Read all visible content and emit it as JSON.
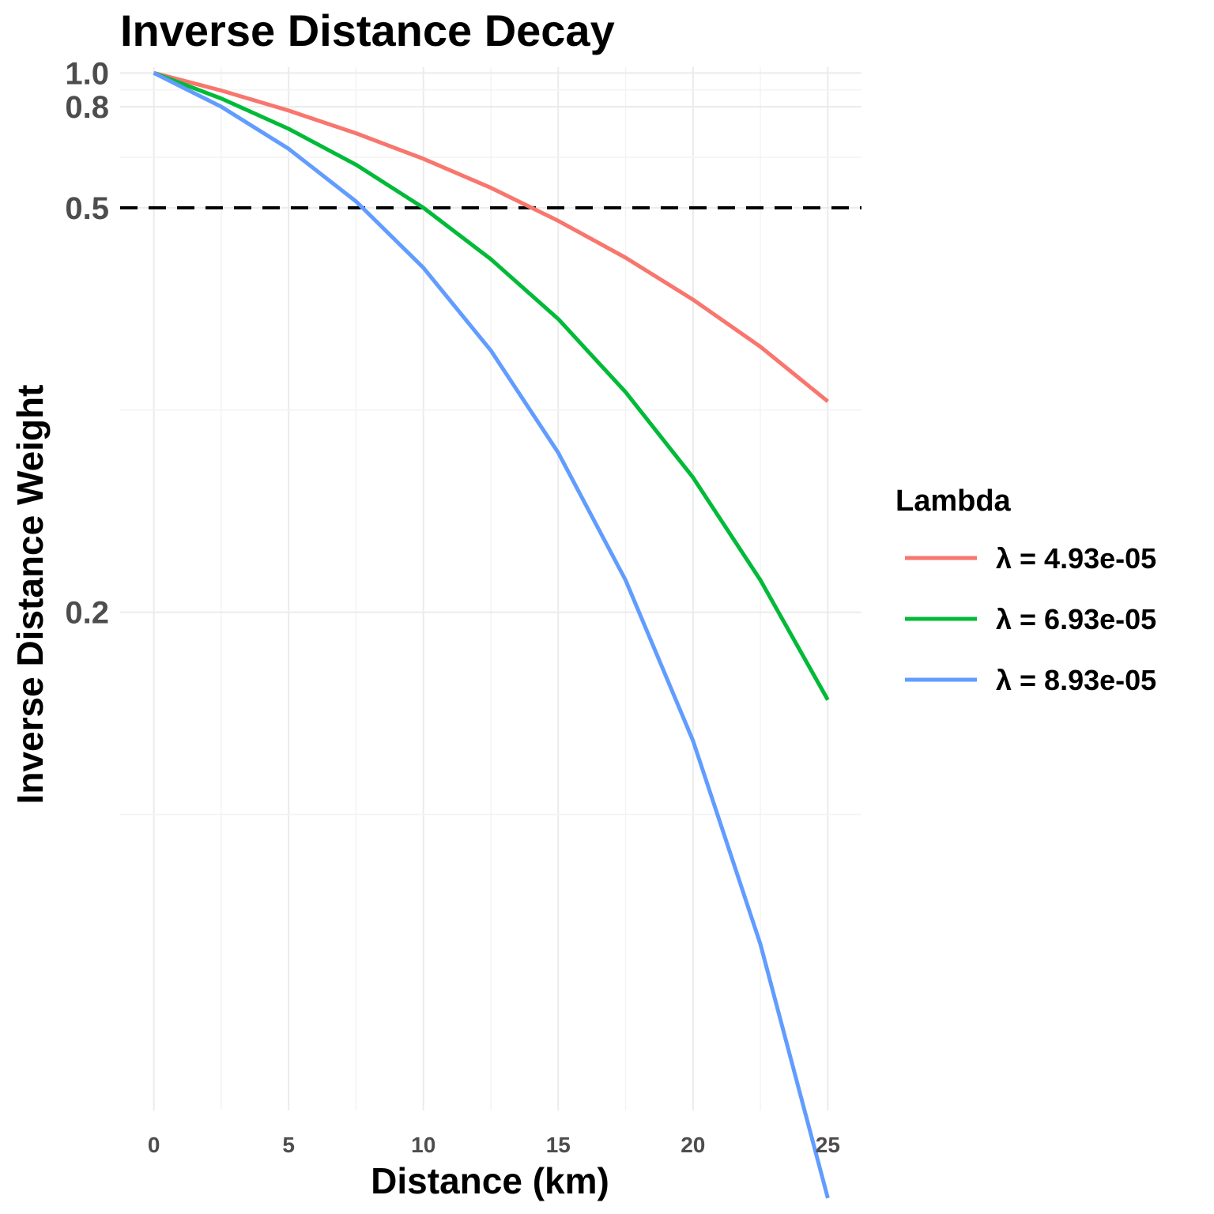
{
  "chart_data": {
    "type": "line",
    "title": "Inverse Distance Decay",
    "xlabel": "Distance (km)",
    "ylabel": "Inverse Distance Weight",
    "x_ticks": [
      0,
      5,
      10,
      15,
      20,
      25
    ],
    "x_tick_labels": [
      "0",
      "5",
      "10",
      "15",
      "20",
      "25"
    ],
    "y_ticks": [
      0.2,
      0.5,
      0.8,
      1.0
    ],
    "y_tick_labels": [
      "0.2",
      "0.5",
      "0.8",
      "1.0"
    ],
    "y_scale": "reciprocal",
    "xlim": [
      -1.25,
      26.25
    ],
    "ylim": [
      0.115,
      1.045
    ],
    "grid": true,
    "legend": {
      "title": "Lambda",
      "placement": "right"
    },
    "reference_line": {
      "y": 0.5,
      "style": "dashed",
      "color": "#000000"
    },
    "x": [
      0,
      2.5,
      5,
      7.5,
      10,
      12.5,
      15,
      17.5,
      20,
      22.5,
      25
    ],
    "series": [
      {
        "name": "λ = 4.93e-05",
        "color": "#F8766D",
        "values": [
          1.0,
          0.885,
          0.782,
          0.691,
          0.611,
          0.54,
          0.477,
          0.422,
          0.373,
          0.33,
          0.291
        ]
      },
      {
        "name": "λ = 6.93e-05",
        "color": "#00BA38",
        "values": [
          1.0,
          0.841,
          0.707,
          0.595,
          0.5,
          0.42,
          0.354,
          0.297,
          0.25,
          0.21,
          0.177
        ]
      },
      {
        "name": "λ = 8.93e-05",
        "color": "#619CFF",
        "values": [
          1.0,
          0.8,
          0.64,
          0.512,
          0.409,
          0.327,
          0.262,
          0.21,
          0.168,
          0.134,
          0.107
        ]
      }
    ]
  }
}
